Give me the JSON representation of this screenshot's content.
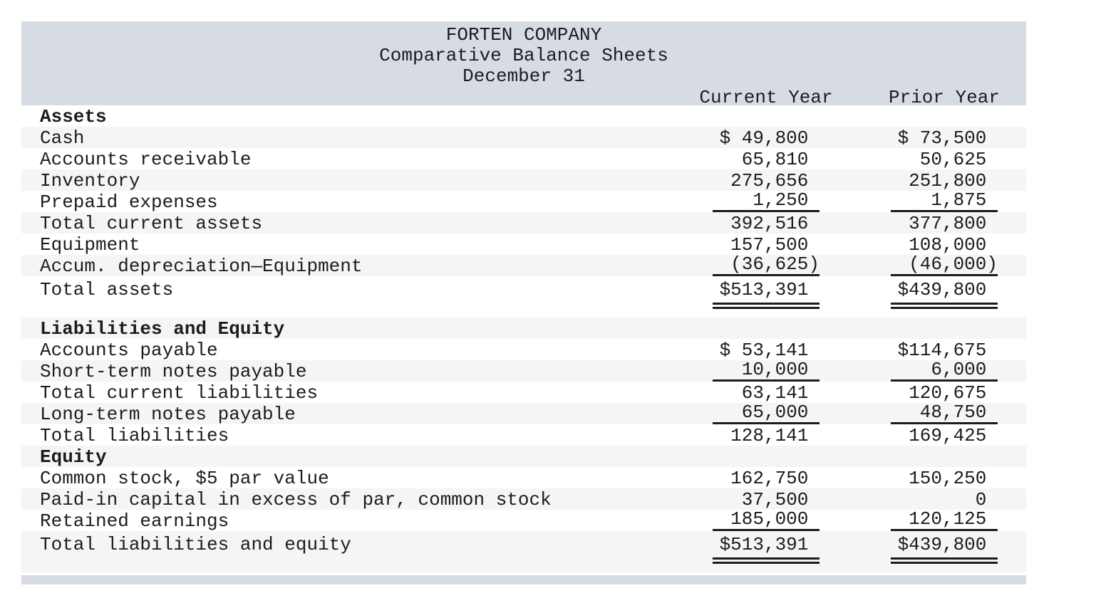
{
  "header": {
    "company": "FORTEN COMPANY",
    "statement": "Comparative Balance Sheets",
    "date_line": "December 31",
    "col_current": "Current Year",
    "col_prior": "Prior Year"
  },
  "colors": {
    "header_band": "#d7dce4",
    "row_stripe": "#f5f5f6",
    "text": "#1c1c1c"
  },
  "rows": [
    {
      "label": "Assets",
      "bold": true
    },
    {
      "label": "Cash",
      "current": "$ 49,800",
      "prior": "$ 73,500"
    },
    {
      "label": "Accounts receivable",
      "current": "65,810",
      "prior": "50,625"
    },
    {
      "label": "Inventory",
      "current": "275,656",
      "prior": "251,800"
    },
    {
      "label": "Prepaid expenses",
      "current": "1,250",
      "prior": "1,875",
      "underline": "single"
    },
    {
      "label": "Total current assets",
      "current": "392,516",
      "prior": "377,800"
    },
    {
      "label": "Equipment",
      "current": "157,500",
      "prior": "108,000"
    },
    {
      "label": "Accum. depreciation—Equipment",
      "current": "(36,625)",
      "prior": "(46,000)",
      "underline": "single"
    },
    {
      "label": "Total assets",
      "current": "$513,391",
      "prior": "$439,800",
      "underline": "double",
      "total": true
    },
    {
      "label": "Liabilities and Equity",
      "bold": true
    },
    {
      "label": "Accounts payable",
      "current": "$ 53,141",
      "prior": "$114,675"
    },
    {
      "label": "Short-term notes payable",
      "current": "10,000",
      "prior": "6,000",
      "underline": "single"
    },
    {
      "label": "Total current liabilities",
      "current": "63,141",
      "prior": "120,675"
    },
    {
      "label": "Long-term notes payable",
      "current": "65,000",
      "prior": "48,750",
      "underline": "single"
    },
    {
      "label": "Total liabilities",
      "current": "128,141",
      "prior": "169,425"
    },
    {
      "label": "Equity",
      "bold": true
    },
    {
      "label": "Common stock, $5 par value",
      "current": "162,750",
      "prior": "150,250"
    },
    {
      "label": "Paid-in capital in excess of par, common stock",
      "current": "37,500",
      "prior": "0"
    },
    {
      "label": "Retained earnings",
      "current": "185,000",
      "prior": "120,125",
      "underline": "single"
    },
    {
      "label": "Total liabilities and equity",
      "current": "$513,391",
      "prior": "$439,800",
      "underline": "double",
      "total": true
    }
  ]
}
